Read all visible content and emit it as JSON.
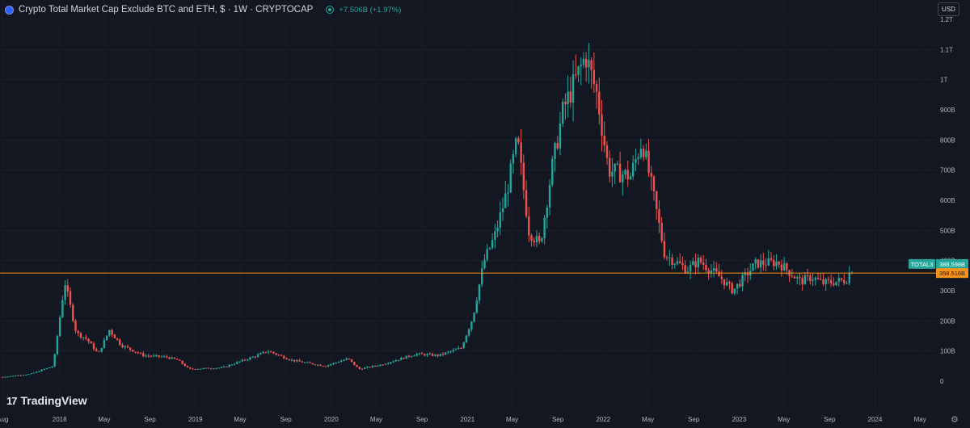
{
  "header": {
    "title": "Crypto Total Market Cap Exclude BTC and ETH, $ · 1W · CRYPTOCAP",
    "change": "+7.506B (+1.97%)"
  },
  "currency_label": "USD",
  "brand": "TradingView",
  "colors": {
    "background": "#131722",
    "up": "#26a69a",
    "down": "#ef5350",
    "hline": "#f7931a",
    "text": "#d1d4dc"
  },
  "icons": [
    "exchange-logo-icon",
    "market-status-icon",
    "tradingview-logo-icon",
    "gear-icon"
  ],
  "chart_data": {
    "type": "candlestick",
    "title": "Crypto Total Market Cap Exclude BTC and ETH, $ · 1W · CRYPTOCAP",
    "y_tick_labels": [
      "0",
      "100B",
      "200B",
      "300B",
      "400B",
      "500B",
      "600B",
      "700B",
      "800B",
      "900B",
      "1T",
      "1.1T",
      "1.2T"
    ],
    "y_tick_values": [
      0,
      100,
      200,
      300,
      400,
      500,
      600,
      700,
      800,
      900,
      1000,
      1100,
      1200
    ],
    "y_unit": "billion USD",
    "ylim": [
      -20,
      1230
    ],
    "x_tick_labels": [
      "Aug",
      "2018",
      "May",
      "Sep",
      "2019",
      "May",
      "Sep",
      "2020",
      "May",
      "Sep",
      "2021",
      "May",
      "Sep",
      "2022",
      "May",
      "Sep",
      "2023",
      "May",
      "Sep",
      "2024",
      "May"
    ],
    "x_tick_dates": [
      "2017-08",
      "2018-01",
      "2018-05",
      "2018-09",
      "2019-01",
      "2019-05",
      "2019-09",
      "2020-01",
      "2020-05",
      "2020-09",
      "2021-01",
      "2021-05",
      "2021-09",
      "2022-01",
      "2022-05",
      "2022-09",
      "2023-01",
      "2023-05",
      "2023-09",
      "2024-01",
      "2024-05"
    ],
    "series": [
      {
        "name": "TOTAL3",
        "last_value": 388.598,
        "last_label": "388.598B"
      }
    ],
    "horizontal_line": {
      "value": 358.516,
      "label": "358.516B"
    },
    "anchors": [
      [
        "2017-08",
        14
      ],
      [
        "2017-10",
        24
      ],
      [
        "2017-12",
        50
      ],
      [
        "2018-01",
        330
      ],
      [
        "2018-02",
        160
      ],
      [
        "2018-03",
        140
      ],
      [
        "2018-04",
        90
      ],
      [
        "2018-05",
        170
      ],
      [
        "2018-06",
        120
      ],
      [
        "2018-08",
        85
      ],
      [
        "2018-10",
        80
      ],
      [
        "2018-11",
        70
      ],
      [
        "2018-12",
        40
      ],
      [
        "2019-03",
        45
      ],
      [
        "2019-06",
        85
      ],
      [
        "2019-07",
        100
      ],
      [
        "2019-09",
        70
      ],
      [
        "2019-12",
        50
      ],
      [
        "2020-02",
        75
      ],
      [
        "2020-03",
        40
      ],
      [
        "2020-05",
        55
      ],
      [
        "2020-08",
        90
      ],
      [
        "2020-10",
        85
      ],
      [
        "2020-12",
        110
      ],
      [
        "2021-01",
        210
      ],
      [
        "2021-02",
        400
      ],
      [
        "2021-03",
        480
      ],
      [
        "2021-04",
        620
      ],
      [
        "2021-05",
        800
      ],
      [
        "2021-06",
        500
      ],
      [
        "2021-07",
        450
      ],
      [
        "2021-08",
        700
      ],
      [
        "2021-09",
        900
      ],
      [
        "2021-11",
        1080
      ],
      [
        "2021-12",
        950
      ],
      [
        "2022-01",
        700
      ],
      [
        "2022-03",
        680
      ],
      [
        "2022-04",
        800
      ],
      [
        "2022-05",
        620
      ],
      [
        "2022-06",
        420
      ],
      [
        "2022-08",
        370
      ],
      [
        "2022-09",
        400
      ],
      [
        "2022-11",
        340
      ],
      [
        "2022-12",
        300
      ],
      [
        "2023-02",
        390
      ],
      [
        "2023-04",
        395
      ],
      [
        "2023-06",
        330
      ],
      [
        "2023-07",
        345
      ],
      [
        "2023-08",
        325
      ],
      [
        "2023-10",
        335
      ],
      [
        "2023-11",
        388.6
      ]
    ]
  }
}
